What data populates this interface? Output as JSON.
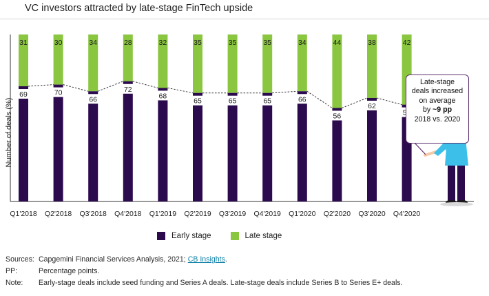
{
  "title": "VC investors attracted by late-stage FinTech upside",
  "chart_data": {
    "type": "bar",
    "stacked": true,
    "title": "VC investors attracted by late-stage FinTech upside",
    "xlabel": "",
    "ylabel": "Number of deals (%)",
    "ylim": [
      0,
      100
    ],
    "grid": false,
    "categories": [
      "Q1'2018",
      "Q2'2018",
      "Q3'2018",
      "Q4'2018",
      "Q1'2019",
      "Q2'2019",
      "Q3'2019",
      "Q4'2019",
      "Q1'2020",
      "Q2'2020",
      "Q3'2020",
      "Q4'2020"
    ],
    "series": [
      {
        "name": "Early stage",
        "color": "#2c0a4e",
        "values": [
          69,
          70,
          66,
          72,
          68,
          65,
          65,
          65,
          66,
          56,
          62,
          58
        ]
      },
      {
        "name": "Late stage",
        "color": "#8ac640",
        "values": [
          31,
          30,
          34,
          28,
          32,
          35,
          35,
          35,
          34,
          44,
          38,
          42
        ]
      }
    ],
    "trend_line": "dashed line connecting early-stage bar tops",
    "legend_position": "bottom"
  },
  "legend": {
    "early": "Early stage",
    "late": "Late stage"
  },
  "callout": {
    "line1": "Late-stage",
    "line2": "deals increased",
    "line3": "on average",
    "line4_prefix": "by ",
    "line4_bold": "~9 pp",
    "line5": "2018 vs. 2020"
  },
  "notes": {
    "sources_label": "Sources:",
    "sources_text": "Capgemini Financial Services Analysis, 2021; ",
    "sources_link": "CB Insights",
    "sources_end": ".",
    "pp_label": "PP:",
    "pp_text": "Percentage points.",
    "note_label": "Note:",
    "note_text": "Early-stage deals include seed funding and Series A deals. Late-stage deals include Series B to Series E+ deals."
  },
  "colors": {
    "early": "#2c0a4e",
    "late": "#8ac640",
    "figure_shirt": "#3cc0ea",
    "figure_pants": "#2c0a4e",
    "figure_skin": "#f6c9a6",
    "figure_hair": "#2a1a10"
  }
}
